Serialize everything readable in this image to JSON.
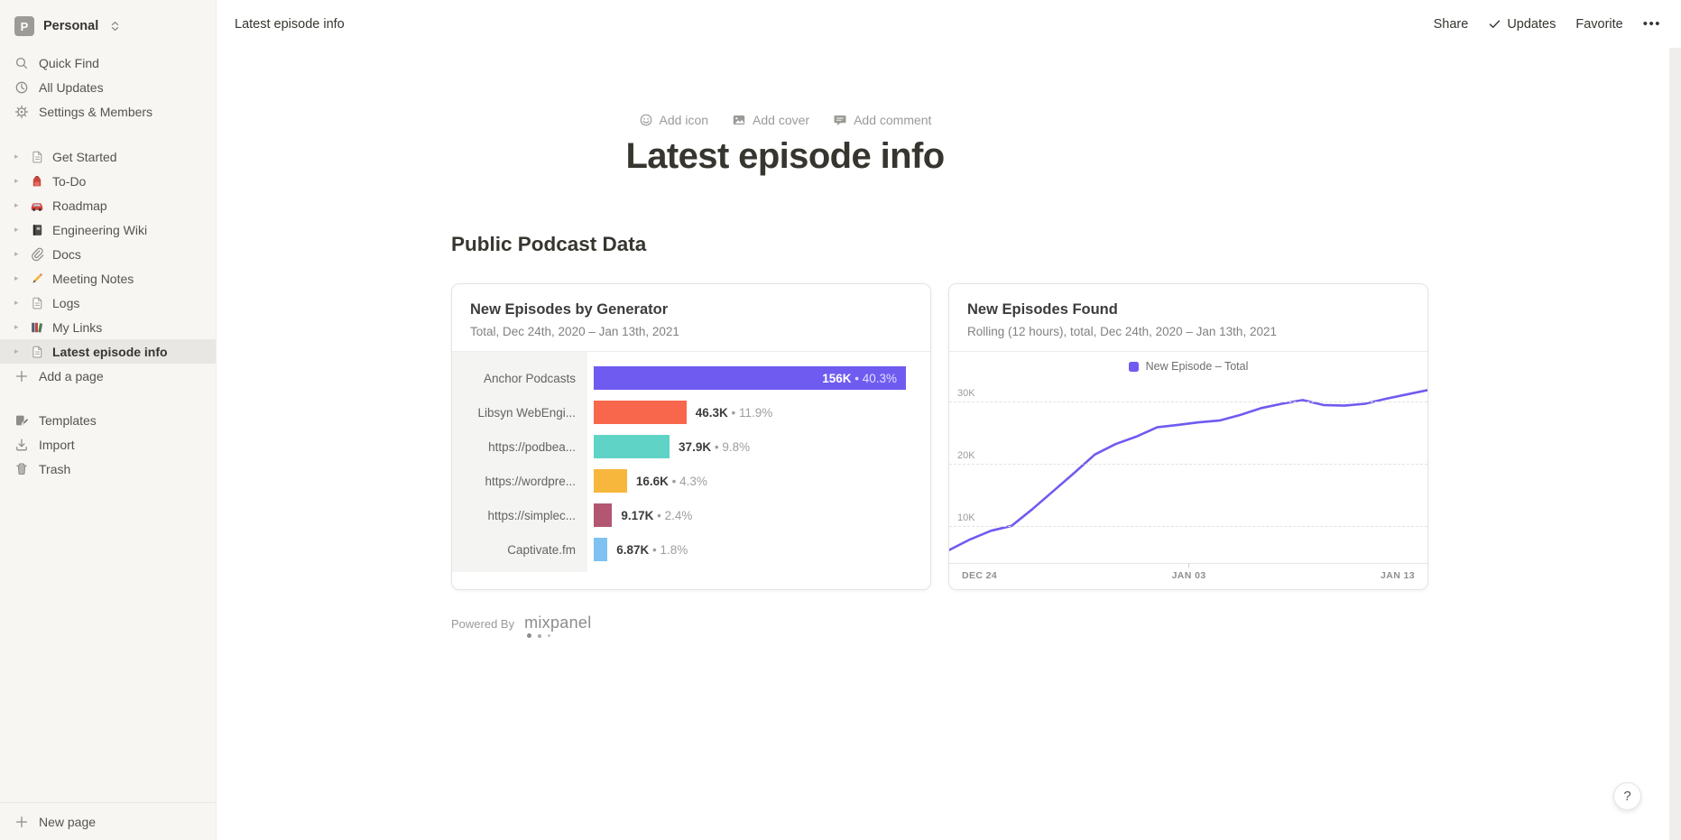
{
  "workspace": {
    "avatar_letter": "P",
    "name": "Personal"
  },
  "sidebar": {
    "top_items": [
      {
        "label": "Quick Find",
        "icon": "search"
      },
      {
        "label": "All Updates",
        "icon": "clock"
      },
      {
        "label": "Settings & Members",
        "icon": "gear"
      }
    ],
    "pages": [
      {
        "label": "Get Started",
        "icon": "page",
        "selected": false
      },
      {
        "label": "To-Do",
        "icon": "backpack",
        "selected": false
      },
      {
        "label": "Roadmap",
        "icon": "car",
        "selected": false
      },
      {
        "label": "Engineering Wiki",
        "icon": "notebook",
        "selected": false
      },
      {
        "label": "Docs",
        "icon": "paperclip",
        "selected": false
      },
      {
        "label": "Meeting Notes",
        "icon": "pencil",
        "selected": false
      },
      {
        "label": "Logs",
        "icon": "page",
        "selected": false
      },
      {
        "label": "My Links",
        "icon": "books",
        "selected": false
      },
      {
        "label": "Latest episode info",
        "icon": "page",
        "selected": true
      }
    ],
    "add_page_label": "Add a page",
    "bottom_items": [
      {
        "label": "Templates",
        "icon": "templates"
      },
      {
        "label": "Import",
        "icon": "import"
      },
      {
        "label": "Trash",
        "icon": "trash"
      }
    ],
    "new_page_label": "New page"
  },
  "topbar": {
    "breadcrumb": "Latest episode info",
    "actions": [
      "Share",
      "Updates",
      "Favorite"
    ],
    "more_label": "•••"
  },
  "page": {
    "add_icon": "Add icon",
    "add_cover": "Add cover",
    "add_comment": "Add comment",
    "title": "Latest episode info",
    "heading": "Public Podcast Data",
    "powered_by": "Powered By",
    "mixpanel_label": "mixpanel"
  },
  "help": {
    "label": "?"
  },
  "chart_data": [
    {
      "type": "bar",
      "title": "New Episodes by Generator",
      "subtitle": "Total, Dec 24th, 2020 – Jan 13th, 2021",
      "categories": [
        "Anchor Podcasts",
        "Libsyn WebEngi...",
        "https://podbea...",
        "https://wordpre...",
        "https://simplec...",
        "Captivate.fm"
      ],
      "values": [
        156000,
        46300,
        37900,
        16600,
        9170,
        6870
      ],
      "value_labels": [
        "156K",
        "46.3K",
        "37.9K",
        "16.6K",
        "9.17K",
        "6.87K"
      ],
      "pct_labels": [
        "40.3%",
        "11.9%",
        "9.8%",
        "4.3%",
        "2.4%",
        "1.8%"
      ],
      "colors": [
        "#6f5bf0",
        "#f8664c",
        "#5fd4c6",
        "#f6b73c",
        "#b25671",
        "#7fc1f0"
      ],
      "xlim": [
        0,
        156000
      ],
      "label_inside_first": true
    },
    {
      "type": "line",
      "title": "New Episodes Found",
      "subtitle": "Rolling (12 hours), total, Dec 24th, 2020 – Jan 13th, 2021",
      "legend": "New Episode – Total",
      "line_color": "#6f5bf0",
      "x_ticks": [
        "DEC 24",
        "JAN 03",
        "JAN 13"
      ],
      "y_ticks": [
        10000,
        20000,
        30000
      ],
      "y_tick_labels": [
        "10K",
        "20K",
        "30K"
      ],
      "ylim": [
        4000,
        34000
      ],
      "values": [
        6100,
        7800,
        9200,
        10000,
        12700,
        15600,
        18500,
        21500,
        23200,
        24400,
        25900,
        26300,
        26700,
        27000,
        27900,
        29000,
        29700,
        30300,
        29500,
        29400,
        29700,
        30500,
        31200,
        31900
      ]
    }
  ]
}
